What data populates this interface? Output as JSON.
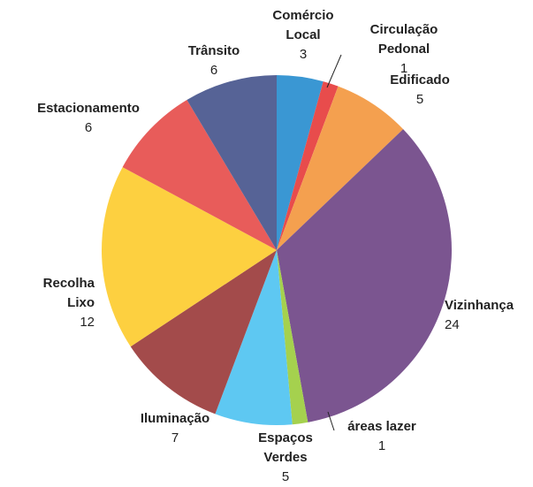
{
  "chart_data": {
    "type": "pie",
    "categories": [
      "Comércio\nLocal",
      "Circulação\nPedonal",
      "Edificado",
      "Vizinhança",
      "áreas lazer",
      "Espaços\nVerdes",
      "Iluminação",
      "Recolha\nLixo",
      "Estacionamento",
      "Trânsito"
    ],
    "values": [
      3,
      1,
      5,
      24,
      1,
      5,
      7,
      12,
      6,
      6
    ],
    "colors": [
      "#3a97d3",
      "#e84c4c",
      "#f4a04f",
      "#7b5590",
      "#a5d14e",
      "#5ec8f2",
      "#a34b4b",
      "#fdd040",
      "#e85c5a",
      "#566396"
    ]
  }
}
